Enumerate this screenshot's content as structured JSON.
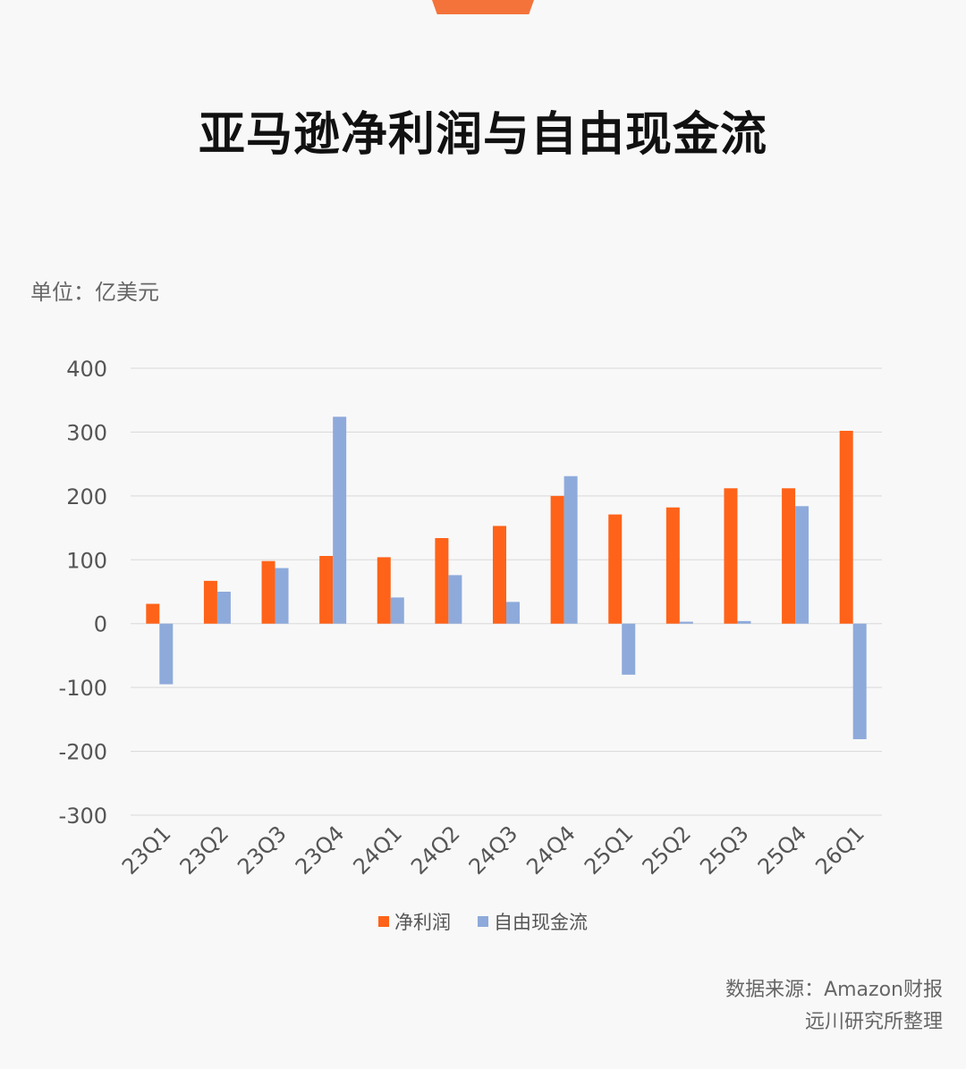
{
  "title": "亚马逊净利润与自由现金流",
  "unit": "单位：亿美元",
  "source": {
    "line1": "数据来源：Amazon财报",
    "line2": "远川研究所整理"
  },
  "colors": {
    "net_profit": "#ff6319",
    "free_cash_flow": "#8eaadb",
    "accent": "#f4733b"
  },
  "chart_data": {
    "type": "bar",
    "title": "亚马逊净利润与自由现金流",
    "ylabel": "单位：亿美元",
    "xlabel": "",
    "ylim": [
      -300,
      400
    ],
    "yticks": [
      400,
      300,
      200,
      100,
      0,
      -100,
      -200,
      -300
    ],
    "ytick_labels": [
      "400",
      "300",
      "200",
      "100",
      "0",
      "-100",
      "-200",
      "-300"
    ],
    "grid": true,
    "legend": "bottom",
    "categories": [
      "23Q1",
      "23Q2",
      "23Q3",
      "23Q4",
      "24Q1",
      "24Q2",
      "24Q3",
      "24Q4",
      "25Q1",
      "25Q2",
      "25Q3",
      "25Q4",
      "26Q1"
    ],
    "series": [
      {
        "name": "净利润",
        "color": "#ff6319",
        "values": [
          31,
          67,
          98,
          106,
          104,
          134,
          153,
          200,
          171,
          182,
          212,
          212,
          302
        ]
      },
      {
        "name": "自由现金流",
        "color": "#8eaadb",
        "values": [
          -95,
          50,
          87,
          324,
          41,
          76,
          34,
          231,
          -80,
          3,
          4,
          184,
          -181
        ]
      }
    ]
  }
}
